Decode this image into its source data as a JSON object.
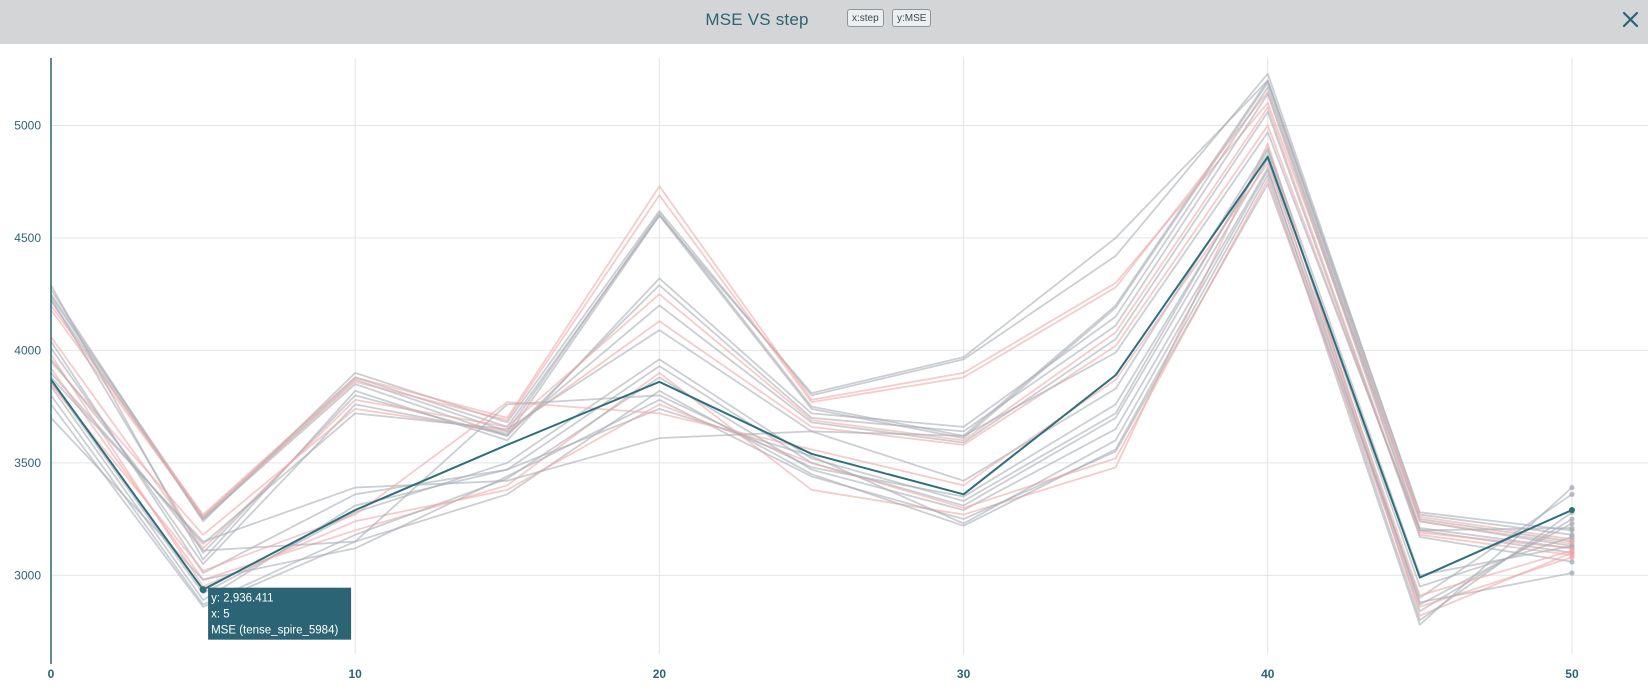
{
  "header": {
    "title": "MSE VS step",
    "x_chip": "x:step",
    "y_chip": "y:MSE"
  },
  "colors": {
    "header_bg": "#d3d5d7",
    "accent": "#2b6475",
    "highlight_line": "#2e6f7e",
    "grey_run": "#a9aeb4",
    "pink_run": "#f0a8a8"
  },
  "chart_data": {
    "type": "line",
    "title": "MSE VS step",
    "xlabel": "step",
    "ylabel": "MSE",
    "x": [
      0,
      5,
      10,
      15,
      20,
      25,
      30,
      35,
      40,
      45,
      50
    ],
    "xlim": [
      0,
      52.5
    ],
    "ylim": [
      2650,
      5300
    ],
    "x_ticks": [
      0,
      10,
      20,
      30,
      40,
      50
    ],
    "y_ticks": [
      3000,
      3500,
      4000,
      4500,
      5000
    ],
    "y_tick_labels": [
      "3000",
      "3500",
      "4000",
      "4500",
      "5000"
    ],
    "grid": true,
    "highlight": {
      "name": "tense_spire_5984",
      "values": [
        3870,
        2936,
        3290,
        3580,
        3860,
        3540,
        3360,
        3890,
        4860,
        2990,
        3290
      ]
    },
    "series": [
      {
        "color": "grey",
        "values": [
          4240,
          3250,
          3870,
          3640,
          4610,
          3750,
          3620,
          4200,
          5200,
          3250,
          3150
        ]
      },
      {
        "color": "grey",
        "values": [
          4220,
          3250,
          3850,
          3620,
          4600,
          3740,
          3610,
          4190,
          5190,
          3240,
          3130
        ]
      },
      {
        "color": "grey",
        "values": [
          4270,
          3240,
          3900,
          3680,
          4620,
          3800,
          3960,
          4420,
          5230,
          3270,
          3180
        ]
      },
      {
        "color": "grey",
        "values": [
          4250,
          3260,
          3880,
          3660,
          4600,
          3810,
          3970,
          4500,
          5200,
          3280,
          3200
        ]
      },
      {
        "color": "pink",
        "values": [
          4200,
          3270,
          3880,
          3700,
          4730,
          3780,
          3900,
          4300,
          5100,
          3260,
          3160
        ]
      },
      {
        "color": "pink",
        "values": [
          4180,
          3260,
          3860,
          3690,
          4690,
          3770,
          3880,
          4280,
          5150,
          3240,
          3140
        ]
      },
      {
        "color": "grey",
        "values": [
          4290,
          3070,
          3820,
          3600,
          4320,
          3720,
          3660,
          4150,
          5170,
          3210,
          3120
        ]
      },
      {
        "color": "grey",
        "values": [
          4230,
          3100,
          3800,
          3620,
          4290,
          3700,
          3640,
          4110,
          5140,
          3200,
          3100
        ]
      },
      {
        "color": "pink",
        "values": [
          4060,
          3120,
          3780,
          3660,
          4250,
          3690,
          3600,
          4080,
          5080,
          3180,
          3090
        ]
      },
      {
        "color": "grey",
        "values": [
          4010,
          3050,
          3760,
          3630,
          4200,
          3680,
          3590,
          4050,
          5060,
          3170,
          3060
        ]
      },
      {
        "color": "pink",
        "values": [
          3950,
          3180,
          3740,
          3640,
          4130,
          3660,
          3580,
          4020,
          5000,
          3190,
          3120
        ]
      },
      {
        "color": "grey",
        "values": [
          3900,
          3140,
          3720,
          3650,
          4090,
          3640,
          3620,
          3990,
          4970,
          3200,
          3210
        ]
      },
      {
        "color": "grey",
        "values": [
          3860,
          2920,
          3280,
          3500,
          3960,
          3520,
          3330,
          3720,
          4890,
          2870,
          3230
        ]
      },
      {
        "color": "grey",
        "values": [
          3840,
          2890,
          3310,
          3470,
          3930,
          3500,
          3310,
          3700,
          4850,
          2840,
          3250
        ]
      },
      {
        "color": "pink",
        "values": [
          3920,
          2980,
          3200,
          3400,
          3900,
          3380,
          3270,
          3480,
          4920,
          2820,
          3100
        ]
      },
      {
        "color": "grey",
        "values": [
          3800,
          2870,
          3180,
          3430,
          3880,
          3470,
          3290,
          3650,
          4810,
          2800,
          3280
        ]
      },
      {
        "color": "grey",
        "values": [
          3760,
          2860,
          3150,
          3360,
          3820,
          3450,
          3220,
          3560,
          4780,
          2780,
          3390
        ]
      },
      {
        "color": "grey",
        "values": [
          3700,
          2980,
          3120,
          3440,
          3780,
          3440,
          3250,
          3550,
          4740,
          2900,
          3360
        ]
      },
      {
        "color": "pink",
        "values": [
          3980,
          2950,
          3240,
          3380,
          3760,
          3500,
          3300,
          3520,
          4760,
          2860,
          3080
        ]
      },
      {
        "color": "grey",
        "values": [
          4040,
          3010,
          3360,
          3470,
          3740,
          3530,
          3230,
          3600,
          4800,
          2880,
          3010
        ]
      },
      {
        "color": "grey",
        "values": [
          3880,
          3150,
          3390,
          3420,
          3610,
          3640,
          3420,
          3830,
          4900,
          3000,
          3130
        ]
      },
      {
        "color": "grey",
        "values": [
          3960,
          3110,
          3150,
          3760,
          3800,
          3480,
          3350,
          3760,
          4870,
          2950,
          3170
        ]
      },
      {
        "color": "pink",
        "values": [
          3850,
          3020,
          3270,
          3770,
          3720,
          3560,
          3400,
          3870,
          4830,
          2910,
          3110
        ]
      }
    ],
    "tooltip": {
      "y_line": "y: 2,936.411",
      "x_line": "x: 5",
      "name_line": "MSE (tense_spire_5984)"
    }
  }
}
